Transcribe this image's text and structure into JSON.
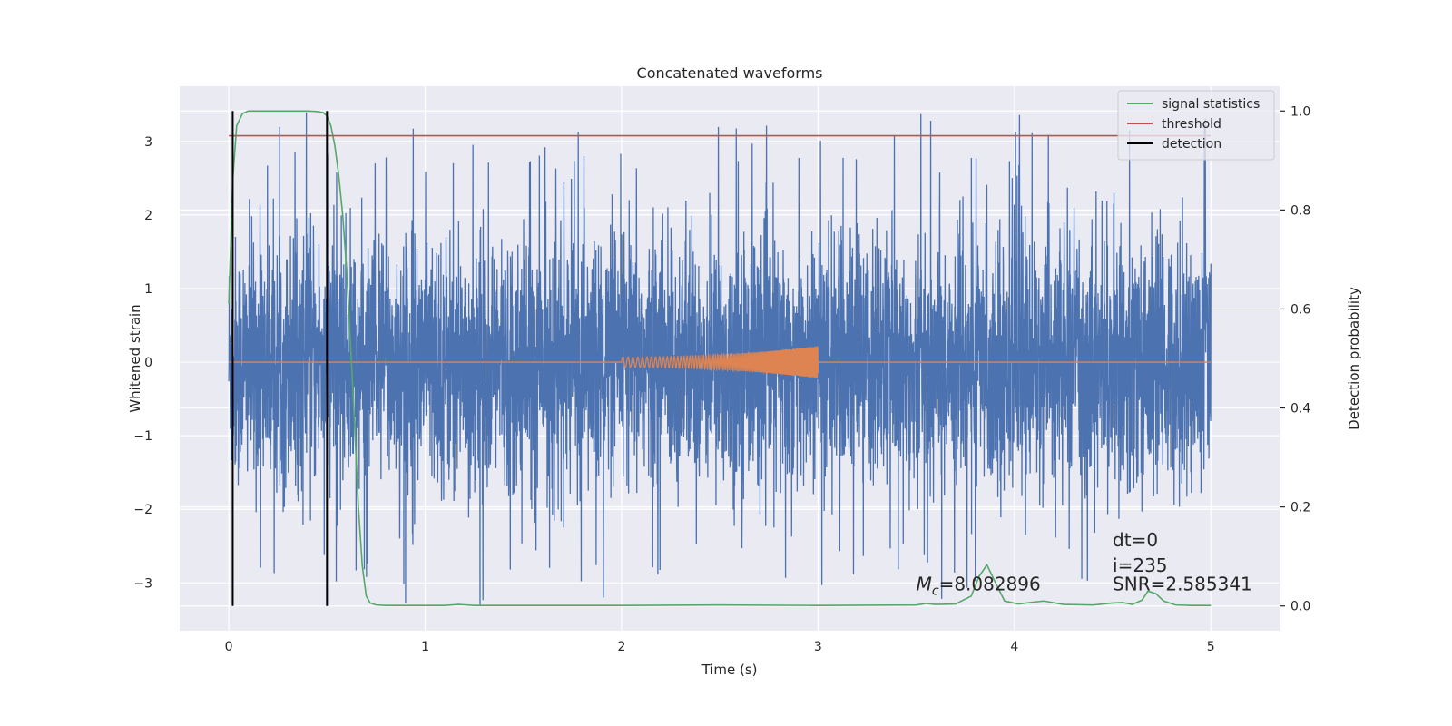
{
  "chart_data": {
    "type": "line",
    "title": "Concatenated waveforms",
    "xlabel": "Time (s)",
    "ylabel": "Whitened strain",
    "y2label": "Detection probability",
    "xlim": [
      -0.25,
      5.35
    ],
    "ylim": [
      -3.65,
      3.75
    ],
    "y2lim": [
      -0.05,
      1.05
    ],
    "xticks": [
      0,
      1,
      2,
      3,
      4,
      5
    ],
    "yticks": [
      -3,
      -2,
      -1,
      0,
      1,
      2,
      3
    ],
    "y2ticks": [
      0.0,
      0.2,
      0.4,
      0.6,
      0.8,
      1.0
    ],
    "xtick_labels": [
      "0",
      "1",
      "2",
      "3",
      "4",
      "5"
    ],
    "ytick_labels": [
      "−3",
      "−2",
      "−1",
      "0",
      "1",
      "2",
      "3"
    ],
    "y2tick_labels": [
      "0.0",
      "0.2",
      "0.4",
      "0.6",
      "0.8",
      "1.0"
    ],
    "grid": true,
    "legend_position": "top-right",
    "series": [
      {
        "name": "",
        "axis": "left",
        "color": "#4c72b0",
        "kind": "noise",
        "x_range": [
          0,
          5
        ],
        "typical_range": [
          -2.0,
          2.0
        ],
        "extremes": [
          -3.3,
          3.42
        ]
      },
      {
        "name": "",
        "axis": "left",
        "color": "#dd8452",
        "kind": "chirp",
        "x_range": [
          2.0,
          3.0
        ],
        "amplitude_start": 0.07,
        "amplitude_end": 0.22
      },
      {
        "name": "signal statistics",
        "axis": "right",
        "color": "#55a868",
        "x": [
          0.0,
          0.02,
          0.04,
          0.07,
          0.1,
          0.2,
          0.3,
          0.4,
          0.45,
          0.48,
          0.5,
          0.52,
          0.54,
          0.56,
          0.58,
          0.6,
          0.62,
          0.64,
          0.66,
          0.68,
          0.7,
          0.72,
          0.75,
          0.8,
          1.0,
          1.1,
          1.17,
          1.25,
          1.5,
          2.0,
          2.5,
          3.0,
          3.5,
          3.55,
          3.6,
          3.7,
          3.78,
          3.82,
          3.86,
          3.9,
          3.95,
          4.02,
          4.1,
          4.15,
          4.25,
          4.4,
          4.5,
          4.55,
          4.6,
          4.65,
          4.68,
          4.72,
          4.76,
          4.82,
          4.9,
          5.0
        ],
        "y": [
          0.61,
          0.86,
          0.97,
          0.995,
          1.0,
          1.0,
          1.0,
          1.0,
          0.999,
          0.997,
          0.99,
          0.97,
          0.93,
          0.87,
          0.79,
          0.68,
          0.53,
          0.37,
          0.2,
          0.08,
          0.02,
          0.006,
          0.002,
          0.001,
          0.001,
          0.001,
          0.003,
          0.001,
          0.001,
          0.001,
          0.002,
          0.001,
          0.002,
          0.005,
          0.003,
          0.004,
          0.02,
          0.06,
          0.083,
          0.05,
          0.01,
          0.004,
          0.008,
          0.01,
          0.003,
          0.002,
          0.006,
          0.007,
          0.003,
          0.012,
          0.03,
          0.025,
          0.01,
          0.002,
          0.001,
          0.001
        ]
      },
      {
        "name": "threshold",
        "axis": "right",
        "color": "#c44e52",
        "x": [
          0,
          5
        ],
        "y": [
          0.95,
          0.95
        ]
      },
      {
        "name": "detection",
        "axis": "right",
        "color": "#000000",
        "kind": "vertical-lines",
        "x": [
          0.02,
          0.5
        ],
        "y_range": [
          0.0,
          1.0
        ]
      }
    ],
    "annotations": [
      {
        "text_prefix": "M",
        "text_sub": "c",
        "text_suffix": "=8.082896",
        "x": 3.5,
        "y": -3.1
      },
      {
        "text": "dt=0",
        "x": 4.5,
        "y": -2.5
      },
      {
        "text": "i=235",
        "x": 4.5,
        "y": -2.85
      },
      {
        "text": "SNR=2.585341",
        "x": 4.5,
        "y": -3.1
      }
    ]
  }
}
